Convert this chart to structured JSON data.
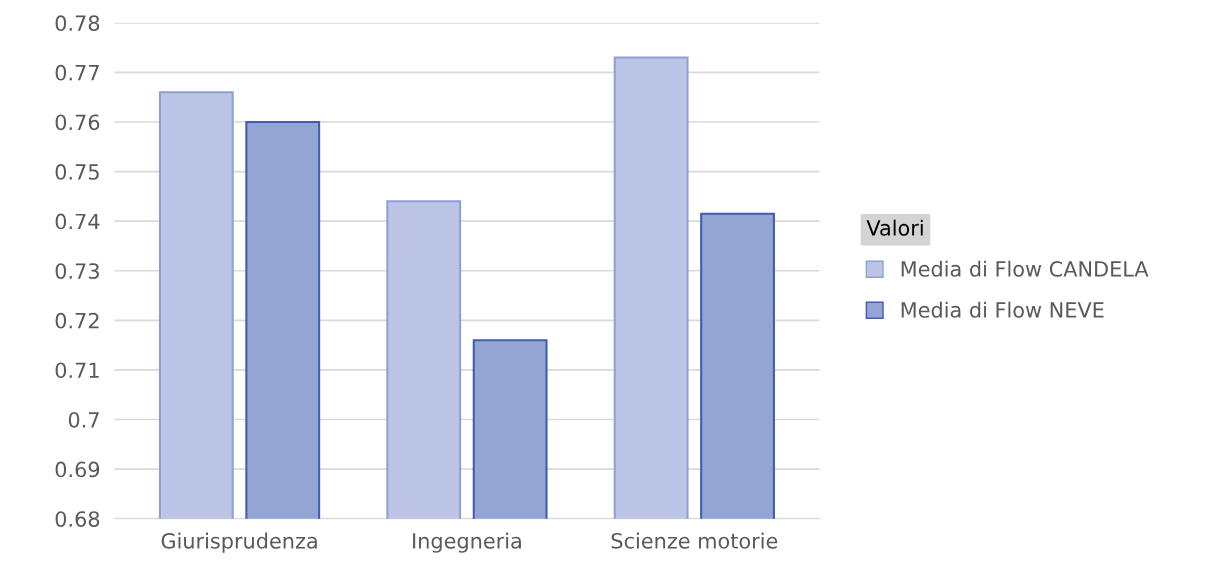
{
  "chart_data": {
    "type": "bar",
    "categories": [
      "Giurisprudenza",
      "Ingegneria",
      "Scienze motorie"
    ],
    "series": [
      {
        "name": "Media di Flow CANDELA",
        "color": "#bcc5e5",
        "values": [
          0.766,
          0.744,
          0.773
        ]
      },
      {
        "name": "Media di Flow NEVE",
        "color": "#94a4d3",
        "values": [
          0.76,
          0.716,
          0.7415
        ]
      }
    ],
    "legend_title": "Valori",
    "legend": "right",
    "ylim": [
      0.68,
      0.78
    ],
    "yticks": [
      0.68,
      0.69,
      0.7,
      0.71,
      0.72,
      0.73,
      0.74,
      0.75,
      0.76,
      0.77,
      0.78
    ],
    "grid": "y"
  }
}
